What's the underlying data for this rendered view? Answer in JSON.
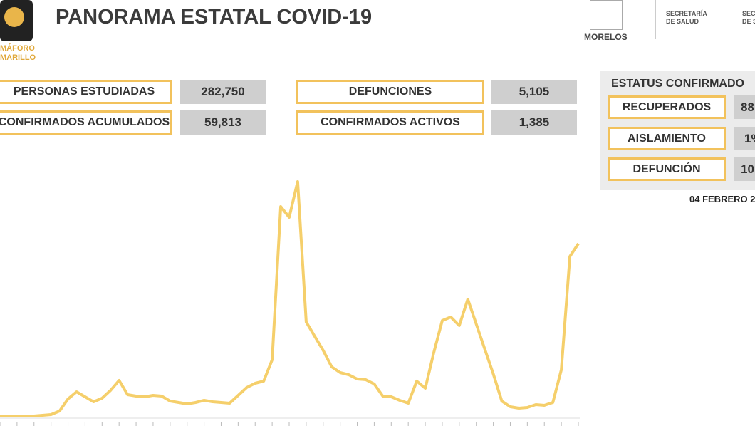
{
  "header": {
    "title": "PANORAMA ESTATAL COVID-19",
    "logo_line1": "MÁFORO",
    "logo_line2": "MARILLO",
    "state": "MORELOS",
    "agency_line1": "SECRETARÍA",
    "agency_line2": "DE SALUD",
    "agency2_line1": "SECRE",
    "agency2_line2": "DE S"
  },
  "stats": [
    {
      "label": "PERSONAS ESTUDIADAS",
      "value": "282,750"
    },
    {
      "label": "CONFIRMADOS ACUMULADOS",
      "value": "59,813"
    },
    {
      "label": "DEFUNCIONES",
      "value": "5,105"
    },
    {
      "label": "CONFIRMADOS ACTIVOS",
      "value": "1,385"
    }
  ],
  "status": {
    "title": "ESTATUS CONFIRMADO",
    "rows": [
      {
        "label": "RECUPERADOS",
        "value": "88"
      },
      {
        "label": "AISLAMIENTO",
        "value": "1%"
      },
      {
        "label": "DEFUNCIÓN",
        "value": "10"
      }
    ],
    "date": "04 FEBRERO 2"
  },
  "chart_data": {
    "type": "line",
    "color": "#f5cf6b",
    "values": [
      1,
      1,
      1,
      1,
      1,
      2,
      3,
      8,
      25,
      35,
      28,
      21,
      26,
      37,
      51,
      31,
      29,
      28,
      30,
      29,
      22,
      20,
      18,
      20,
      23,
      21,
      20,
      19,
      30,
      41,
      47,
      50,
      80,
      295,
      280,
      330,
      133,
      113,
      93,
      70,
      62,
      59,
      53,
      52,
      46,
      29,
      28,
      23,
      19,
      50,
      40,
      90,
      135,
      140,
      128,
      165,
      130,
      95,
      60,
      22,
      14,
      12,
      13,
      17,
      16,
      20,
      66,
      225,
      243
    ]
  }
}
